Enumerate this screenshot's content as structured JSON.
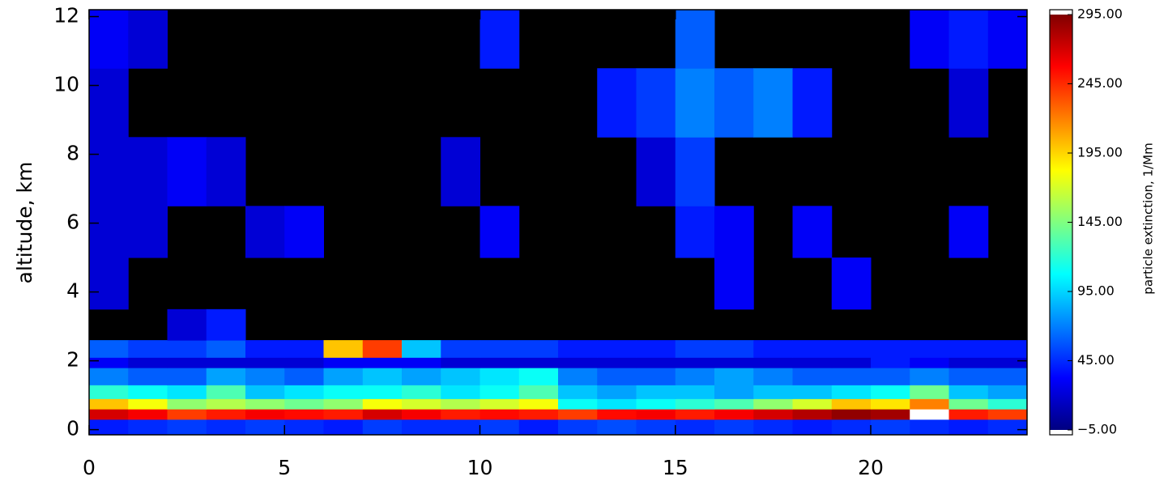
{
  "chart_data": {
    "type": "heatmap",
    "ylabel": "altitude, km",
    "colorbar_label": "particle extinction, 1/Mm",
    "xlim": [
      0,
      24
    ],
    "ylim": [
      -0.15,
      12.2
    ],
    "xticks": [
      0,
      5,
      10,
      15,
      20
    ],
    "yticks": [
      0,
      2,
      4,
      6,
      8,
      10,
      12
    ],
    "xbins": [
      0,
      1,
      2,
      3,
      4,
      5,
      6,
      7,
      8,
      9,
      10,
      11,
      12,
      13,
      14,
      15,
      16,
      17,
      18,
      19,
      20,
      21,
      22,
      23,
      24
    ],
    "ybins": [
      -0.15,
      0.3,
      0.6,
      0.9,
      1.3,
      1.8,
      2.1,
      2.6,
      3.5,
      5,
      6.5,
      8.5,
      10.5,
      12.2
    ],
    "zlim": [
      -5,
      295
    ],
    "zticks": [
      {
        "value": -5,
        "label": "−5.00"
      },
      {
        "value": 45,
        "label": "45.00"
      },
      {
        "value": 95,
        "label": "95.00"
      },
      {
        "value": 145,
        "label": "145.00"
      },
      {
        "value": 195,
        "label": "195.00"
      },
      {
        "value": 245,
        "label": "245.00"
      },
      {
        "value": 295,
        "label": "295.00"
      }
    ],
    "colormap": [
      "#000080",
      "#0000ff",
      "#0080ff",
      "#00ffff",
      "#80ff80",
      "#ffff00",
      "#ff8000",
      "#ff0000",
      "#800000"
    ],
    "null_color": "#000000",
    "over_color": "#ffffff",
    "z": [
      [
        40,
        45,
        50,
        45,
        50,
        45,
        40,
        50,
        45,
        45,
        50,
        40,
        50,
        55,
        50,
        45,
        50,
        45,
        40,
        45,
        50,
        45,
        40,
        45
      ],
      [
        270,
        260,
        240,
        250,
        260,
        255,
        250,
        270,
        260,
        250,
        255,
        250,
        240,
        255,
        260,
        250,
        260,
        270,
        280,
        290,
        285,
        300,
        250,
        240
      ],
      [
        200,
        180,
        150,
        160,
        150,
        140,
        150,
        180,
        170,
        160,
        170,
        180,
        110,
        100,
        110,
        120,
        130,
        150,
        170,
        200,
        190,
        220,
        140,
        120
      ],
      [
        120,
        110,
        100,
        130,
        90,
        100,
        110,
        110,
        120,
        100,
        110,
        130,
        90,
        80,
        90,
        90,
        80,
        90,
        90,
        100,
        110,
        140,
        90,
        80
      ],
      [
        70,
        60,
        60,
        80,
        70,
        60,
        80,
        90,
        80,
        90,
        100,
        110,
        70,
        60,
        60,
        70,
        80,
        70,
        60,
        60,
        60,
        70,
        60,
        60
      ],
      [
        30,
        20,
        20,
        20,
        20,
        20,
        30,
        30,
        30,
        20,
        20,
        20,
        20,
        20,
        20,
        20,
        20,
        20,
        20,
        20,
        40,
        30,
        20,
        20
      ],
      [
        60,
        50,
        50,
        60,
        40,
        40,
        200,
        240,
        90,
        50,
        50,
        50,
        40,
        40,
        40,
        50,
        50,
        40,
        40,
        40,
        40,
        40,
        40,
        40
      ],
      [
        null,
        null,
        20,
        40,
        null,
        null,
        null,
        null,
        null,
        null,
        null,
        null,
        null,
        null,
        null,
        null,
        null,
        null,
        null,
        null,
        null,
        null,
        null,
        null
      ],
      [
        20,
        null,
        null,
        null,
        null,
        null,
        null,
        null,
        null,
        null,
        null,
        null,
        null,
        null,
        null,
        null,
        30,
        null,
        null,
        30,
        null,
        null,
        null,
        null
      ],
      [
        20,
        20,
        null,
        null,
        20,
        30,
        null,
        null,
        null,
        null,
        30,
        null,
        null,
        null,
        null,
        40,
        30,
        null,
        30,
        null,
        null,
        null,
        30,
        null
      ],
      [
        20,
        20,
        30,
        20,
        null,
        null,
        null,
        null,
        null,
        20,
        null,
        null,
        null,
        null,
        20,
        50,
        null,
        null,
        null,
        null,
        null,
        null,
        null,
        null
      ],
      [
        20,
        null,
        null,
        null,
        null,
        null,
        null,
        null,
        null,
        null,
        null,
        null,
        null,
        40,
        50,
        70,
        60,
        70,
        40,
        null,
        null,
        null,
        20,
        null
      ],
      [
        30,
        20,
        null,
        null,
        null,
        null,
        null,
        null,
        null,
        null,
        40,
        null,
        null,
        null,
        null,
        60,
        null,
        null,
        null,
        null,
        null,
        30,
        40,
        30
      ]
    ]
  }
}
